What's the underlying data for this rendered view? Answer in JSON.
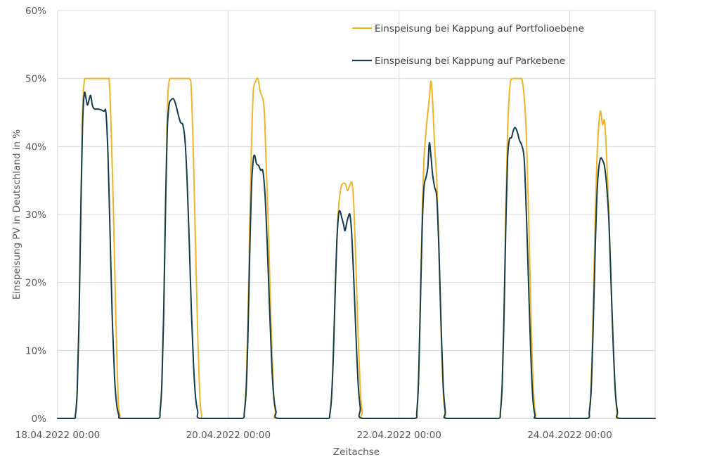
{
  "chart_data": {
    "type": "line",
    "title": "",
    "xlabel": "Zeitachse",
    "ylabel": "Einspeisung PV in Deutschland in %",
    "ylim": [
      0,
      60
    ],
    "yticks": [
      0,
      10,
      20,
      30,
      40,
      50,
      60
    ],
    "ytick_labels": [
      "0%",
      "10%",
      "20%",
      "30%",
      "40%",
      "50%",
      "60%"
    ],
    "xlim_hours": [
      0,
      168
    ],
    "xtick_hours": [
      0,
      48,
      96,
      144
    ],
    "xtick_labels": [
      "18.04.2022 00:00",
      "20.04.2022 00:00",
      "22.04.2022 00:00",
      "24.04.2022 00:00"
    ],
    "grid": true,
    "legend_position": "top-right",
    "series": [
      {
        "name": "Einspeisung bei Kappung auf Portfolioebene",
        "color": "#F0B429",
        "points": [
          [
            0,
            0
          ],
          [
            4.5,
            0
          ],
          [
            5,
            0.5
          ],
          [
            5.5,
            4
          ],
          [
            6,
            14
          ],
          [
            6.5,
            30
          ],
          [
            7,
            45
          ],
          [
            7.6,
            50
          ],
          [
            8.5,
            50
          ],
          [
            11,
            50
          ],
          [
            14,
            50
          ],
          [
            14.6,
            49
          ],
          [
            15.2,
            40
          ],
          [
            15.8,
            28
          ],
          [
            16.4,
            14
          ],
          [
            17,
            3
          ],
          [
            17.5,
            0.5
          ],
          [
            18,
            0
          ],
          [
            24,
            0
          ],
          [
            28.3,
            0
          ],
          [
            28.8,
            1
          ],
          [
            29.3,
            5
          ],
          [
            29.8,
            15
          ],
          [
            30.3,
            30
          ],
          [
            30.8,
            44
          ],
          [
            31.5,
            50
          ],
          [
            34,
            50
          ],
          [
            37,
            50
          ],
          [
            37.6,
            48
          ],
          [
            38.2,
            38
          ],
          [
            38.8,
            25
          ],
          [
            39.4,
            12
          ],
          [
            40,
            3
          ],
          [
            40.5,
            0.5
          ],
          [
            41,
            0
          ],
          [
            48,
            0
          ],
          [
            52,
            0
          ],
          [
            52.5,
            1
          ],
          [
            53,
            5
          ],
          [
            53.5,
            14
          ],
          [
            54,
            28
          ],
          [
            54.5,
            40
          ],
          [
            55,
            48
          ],
          [
            55.6,
            49.5
          ],
          [
            56.3,
            50
          ],
          [
            57,
            48
          ],
          [
            58,
            46
          ],
          [
            58.6,
            38
          ],
          [
            59.3,
            27
          ],
          [
            60,
            14
          ],
          [
            60.6,
            5
          ],
          [
            61.2,
            1
          ],
          [
            61.8,
            0
          ],
          [
            72,
            0
          ],
          [
            76,
            0
          ],
          [
            76.5,
            0.5
          ],
          [
            77,
            3
          ],
          [
            77.5,
            9
          ],
          [
            78,
            18
          ],
          [
            78.5,
            26
          ],
          [
            79,
            31
          ],
          [
            79.7,
            34
          ],
          [
            80.4,
            34.6
          ],
          [
            81,
            34.4
          ],
          [
            81.5,
            33.5
          ],
          [
            82.1,
            34.2
          ],
          [
            82.8,
            34.6
          ],
          [
            83.3,
            31
          ],
          [
            83.9,
            22
          ],
          [
            84.5,
            12
          ],
          [
            85.1,
            4
          ],
          [
            85.6,
            1
          ],
          [
            86.1,
            0
          ],
          [
            96,
            0
          ],
          [
            100.5,
            0
          ],
          [
            101,
            1
          ],
          [
            101.5,
            6
          ],
          [
            102,
            18
          ],
          [
            102.5,
            30
          ],
          [
            103,
            38
          ],
          [
            103.7,
            43
          ],
          [
            104.5,
            47
          ],
          [
            105,
            49.6
          ],
          [
            105.5,
            46
          ],
          [
            106,
            40
          ],
          [
            106.6,
            35
          ],
          [
            107.2,
            25
          ],
          [
            107.8,
            13
          ],
          [
            108.4,
            4
          ],
          [
            109,
            0.5
          ],
          [
            109.5,
            0
          ],
          [
            120,
            0
          ],
          [
            124,
            0
          ],
          [
            124.5,
            1
          ],
          [
            125,
            5
          ],
          [
            125.5,
            15
          ],
          [
            126,
            30
          ],
          [
            126.5,
            42
          ],
          [
            127.2,
            49
          ],
          [
            128,
            50
          ],
          [
            130,
            50
          ],
          [
            130.7,
            49.5
          ],
          [
            131.5,
            45
          ],
          [
            132,
            38
          ],
          [
            132.6,
            26
          ],
          [
            133.2,
            13
          ],
          [
            133.8,
            4
          ],
          [
            134.4,
            0.5
          ],
          [
            135,
            0
          ],
          [
            144,
            0
          ],
          [
            149,
            0
          ],
          [
            149.5,
            1
          ],
          [
            150,
            5
          ],
          [
            150.5,
            14
          ],
          [
            151,
            26
          ],
          [
            151.5,
            36
          ],
          [
            152,
            42
          ],
          [
            152.6,
            45.2
          ],
          [
            153.2,
            43.2
          ],
          [
            153.8,
            43.7
          ],
          [
            154.4,
            38
          ],
          [
            155,
            30
          ],
          [
            155.6,
            20
          ],
          [
            156.2,
            11
          ],
          [
            156.8,
            4
          ],
          [
            157.4,
            0.5
          ],
          [
            158,
            0
          ],
          [
            168,
            0
          ]
        ]
      },
      {
        "name": "Einspeisung bei Kappung auf Parkebene",
        "color": "#163B4A",
        "points": [
          [
            0,
            0
          ],
          [
            4.5,
            0
          ],
          [
            5,
            0.5
          ],
          [
            5.5,
            4
          ],
          [
            6,
            14
          ],
          [
            6.5,
            30
          ],
          [
            7,
            43
          ],
          [
            7.5,
            47.8
          ],
          [
            8,
            47
          ],
          [
            8.4,
            46.1
          ],
          [
            8.9,
            47
          ],
          [
            9.3,
            47.5
          ],
          [
            9.8,
            46
          ],
          [
            10.4,
            45.5
          ],
          [
            11.5,
            45.5
          ],
          [
            13,
            45.2
          ],
          [
            13.6,
            44.9
          ],
          [
            14.2,
            38
          ],
          [
            14.8,
            26
          ],
          [
            15.4,
            14
          ],
          [
            16,
            6
          ],
          [
            16.6,
            2
          ],
          [
            17.2,
            0.5
          ],
          [
            17.8,
            0
          ],
          [
            24,
            0
          ],
          [
            28.3,
            0
          ],
          [
            28.8,
            1
          ],
          [
            29.3,
            5
          ],
          [
            29.8,
            15
          ],
          [
            30.3,
            30
          ],
          [
            30.8,
            42
          ],
          [
            31.3,
            46
          ],
          [
            31.8,
            46.8
          ],
          [
            32.6,
            47
          ],
          [
            33.3,
            46
          ],
          [
            34,
            44.5
          ],
          [
            34.6,
            43.5
          ],
          [
            35.2,
            43.2
          ],
          [
            35.8,
            41
          ],
          [
            36.4,
            35
          ],
          [
            37,
            26
          ],
          [
            37.6,
            16
          ],
          [
            38.2,
            8
          ],
          [
            38.8,
            3
          ],
          [
            39.4,
            1
          ],
          [
            40,
            0
          ],
          [
            48,
            0
          ],
          [
            52,
            0
          ],
          [
            52.5,
            1
          ],
          [
            53,
            4
          ],
          [
            53.5,
            12
          ],
          [
            54,
            24
          ],
          [
            54.5,
            34
          ],
          [
            55,
            38
          ],
          [
            55.4,
            38.7
          ],
          [
            55.9,
            37.5
          ],
          [
            56.5,
            37.2
          ],
          [
            57.1,
            36.5
          ],
          [
            57.7,
            36.4
          ],
          [
            58.3,
            33
          ],
          [
            58.9,
            26
          ],
          [
            59.6,
            16
          ],
          [
            60.2,
            8
          ],
          [
            60.8,
            3
          ],
          [
            61.4,
            1
          ],
          [
            62,
            0
          ],
          [
            72,
            0
          ],
          [
            76,
            0
          ],
          [
            76.5,
            0.5
          ],
          [
            77,
            3
          ],
          [
            77.5,
            9
          ],
          [
            78,
            18
          ],
          [
            78.5,
            26
          ],
          [
            79,
            30
          ],
          [
            79.4,
            30.5
          ],
          [
            79.9,
            29.5
          ],
          [
            80.4,
            28.5
          ],
          [
            80.8,
            27.6
          ],
          [
            81.3,
            28.8
          ],
          [
            81.8,
            29.8
          ],
          [
            82.2,
            29.9
          ],
          [
            82.7,
            27
          ],
          [
            83.3,
            20
          ],
          [
            83.9,
            12
          ],
          [
            84.5,
            5
          ],
          [
            85.1,
            1.5
          ],
          [
            85.6,
            0
          ],
          [
            96,
            0
          ],
          [
            100.5,
            0
          ],
          [
            101,
            1
          ],
          [
            101.5,
            6
          ],
          [
            102,
            17
          ],
          [
            102.5,
            28
          ],
          [
            103,
            34
          ],
          [
            103.6,
            35.5
          ],
          [
            104.1,
            37
          ],
          [
            104.5,
            40.5
          ],
          [
            104.9,
            39
          ],
          [
            105.4,
            36
          ],
          [
            106,
            34
          ],
          [
            106.6,
            32.5
          ],
          [
            107.2,
            25
          ],
          [
            107.8,
            14
          ],
          [
            108.4,
            5
          ],
          [
            109,
            1
          ],
          [
            109.5,
            0
          ],
          [
            120,
            0
          ],
          [
            124,
            0
          ],
          [
            124.5,
            1
          ],
          [
            125,
            5
          ],
          [
            125.5,
            15
          ],
          [
            126,
            28
          ],
          [
            126.5,
            38
          ],
          [
            127,
            41
          ],
          [
            127.6,
            41.3
          ],
          [
            128.1,
            42.3
          ],
          [
            128.6,
            42.8
          ],
          [
            129.2,
            42.2
          ],
          [
            129.8,
            41
          ],
          [
            130.6,
            40
          ],
          [
            131.2,
            38
          ],
          [
            131.8,
            30
          ],
          [
            132.4,
            20
          ],
          [
            133,
            10
          ],
          [
            133.6,
            3
          ],
          [
            134.2,
            0.5
          ],
          [
            134.8,
            0
          ],
          [
            144,
            0
          ],
          [
            149,
            0
          ],
          [
            149.5,
            1
          ],
          [
            150,
            4
          ],
          [
            150.5,
            12
          ],
          [
            151,
            22
          ],
          [
            151.5,
            31
          ],
          [
            152,
            36
          ],
          [
            152.6,
            38.2
          ],
          [
            153.2,
            38
          ],
          [
            153.8,
            37
          ],
          [
            154.4,
            34
          ],
          [
            155,
            29
          ],
          [
            155.6,
            20
          ],
          [
            156.2,
            11
          ],
          [
            156.8,
            4
          ],
          [
            157.4,
            1
          ],
          [
            158,
            0
          ],
          [
            168,
            0
          ]
        ]
      }
    ]
  }
}
